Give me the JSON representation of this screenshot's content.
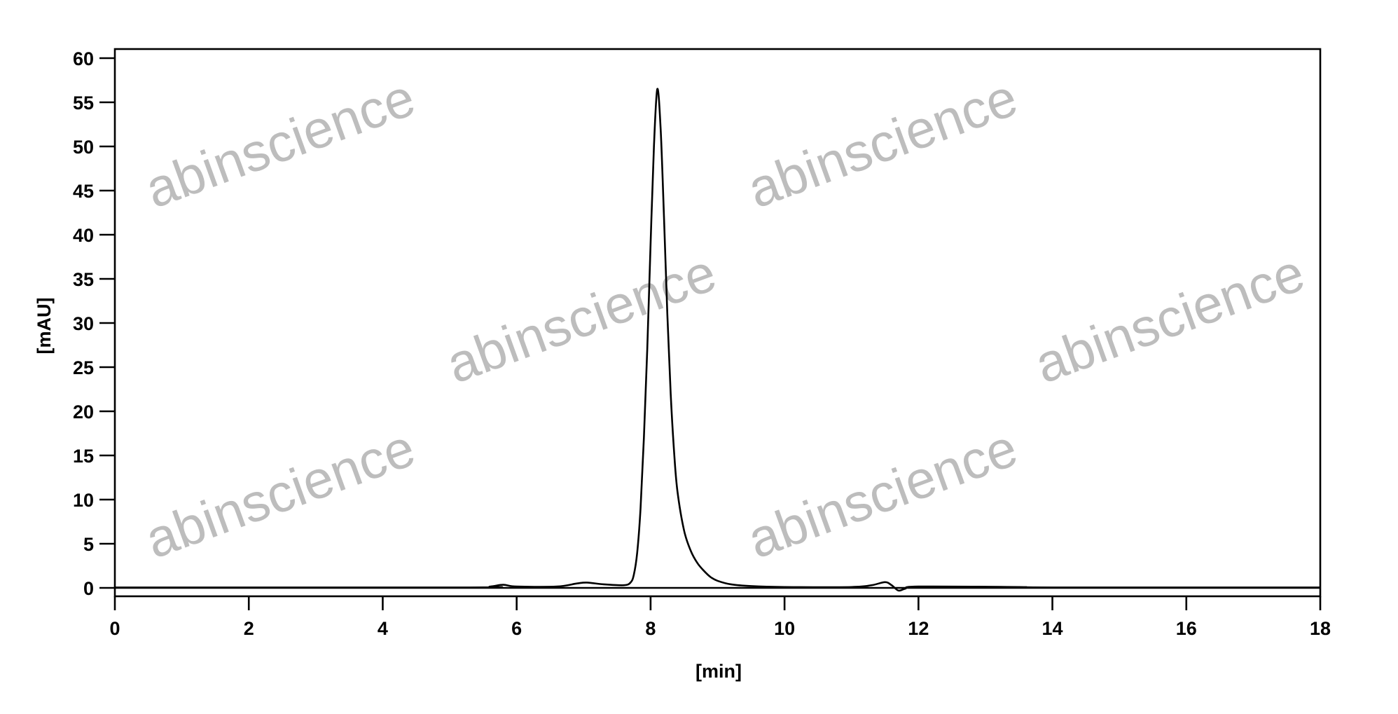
{
  "chart_data": {
    "type": "line",
    "title": "",
    "xlabel": "[min]",
    "ylabel": "[mAU]",
    "xlim": [
      0,
      18
    ],
    "ylim": [
      -1,
      61
    ],
    "xticks": [
      0,
      2,
      4,
      6,
      8,
      10,
      12,
      14,
      16,
      18
    ],
    "yticks": [
      0,
      5,
      10,
      15,
      20,
      25,
      30,
      35,
      40,
      45,
      50,
      55,
      60
    ],
    "grid": false,
    "legend": "none",
    "line_color": "#000000",
    "watermark": "abinscience",
    "watermark_color": "#bdbdbd",
    "series": [
      {
        "x": [
          0,
          5.3,
          5.6,
          5.8,
          6.0,
          6.6,
          6.9,
          7.05,
          7.3,
          7.6,
          7.7,
          7.75,
          7.8,
          7.85,
          7.9,
          7.95,
          8.0,
          8.05,
          8.1,
          8.15,
          8.2,
          8.25,
          8.3,
          8.35,
          8.4,
          8.5,
          8.6,
          8.7,
          8.8,
          8.9,
          9.0,
          9.2,
          9.5,
          10.0,
          11.0,
          11.3,
          11.5,
          11.6,
          11.7,
          11.8,
          12.0,
          13.5,
          14.0,
          18.0
        ],
        "y": [
          0.05,
          0.05,
          0.15,
          0.35,
          0.15,
          0.15,
          0.5,
          0.6,
          0.4,
          0.3,
          0.6,
          1.5,
          4,
          9,
          17,
          27,
          39,
          50,
          56.5,
          52,
          42,
          31,
          22,
          15.5,
          11,
          6.5,
          4.2,
          2.8,
          1.9,
          1.2,
          0.8,
          0.4,
          0.2,
          0.1,
          0.1,
          0.3,
          0.65,
          0.3,
          -0.3,
          -0.1,
          0.15,
          0.1,
          0.05,
          0.05
        ]
      }
    ]
  }
}
